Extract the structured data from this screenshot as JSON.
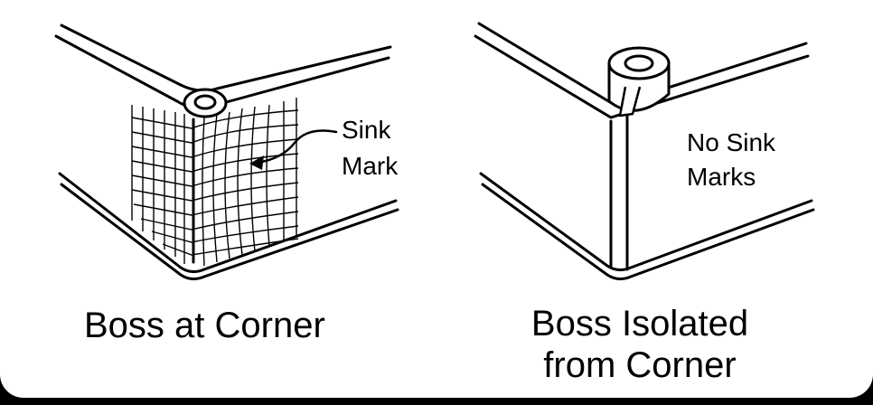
{
  "left_figure": {
    "callout_line1": "Sink",
    "callout_line2": "Mark",
    "caption": "Boss at Corner"
  },
  "right_figure": {
    "note_line1": "No Sink",
    "note_line2": "Marks",
    "caption_line1": "Boss Isolated",
    "caption_line2": "from Corner"
  },
  "colors": {
    "ink": "#000000",
    "paper": "#ffffff",
    "frame": "#000000"
  }
}
